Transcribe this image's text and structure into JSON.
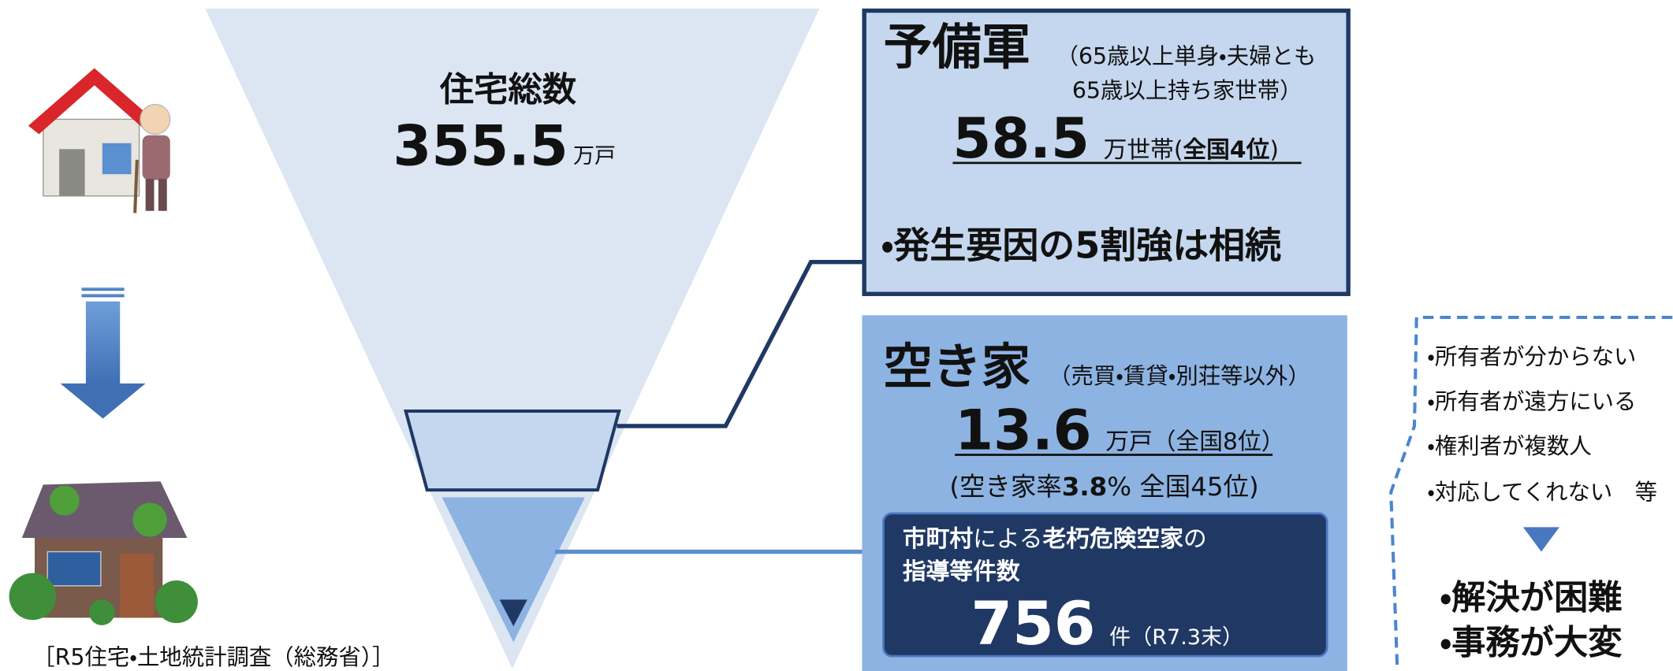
{
  "funnel": {
    "title": "住宅総数",
    "value": "355.5",
    "unit": "万戸"
  },
  "reserve": {
    "title": "予備軍",
    "note_line1": "（65歳以上単身・夫婦とも",
    "note_line2": "65歳以上持ち家世帯）",
    "value": "58.5",
    "unit": "万世帯(",
    "rank": "全国4位",
    "rank_close": ")",
    "bullet": "・発生要因の5割強は相続"
  },
  "vacant": {
    "title": "空き家",
    "note": "（売買・賃貸・別荘等以外）",
    "value": "13.6",
    "unit": "万戸（全国8位）",
    "rate_prefix": "(空き家率",
    "rate_value": "3.8",
    "rate_unit": "%",
    "rate_suffix": " 全国45位)"
  },
  "guidance": {
    "line1": [
      "市町村",
      "による",
      "老朽危険空家",
      "の"
    ],
    "line2": "指導等件数",
    "value": "756",
    "unit": "件（R7.3末）"
  },
  "issues": {
    "items": [
      "・所有者が分からない",
      "・所有者が遠方にいる",
      "・権利者が複数人",
      "・対応してくれない　等"
    ],
    "conclusions": [
      "・解決が困難",
      "・事務が大変"
    ]
  },
  "source": "［R5住宅・土地統計調査（総務省）］"
}
